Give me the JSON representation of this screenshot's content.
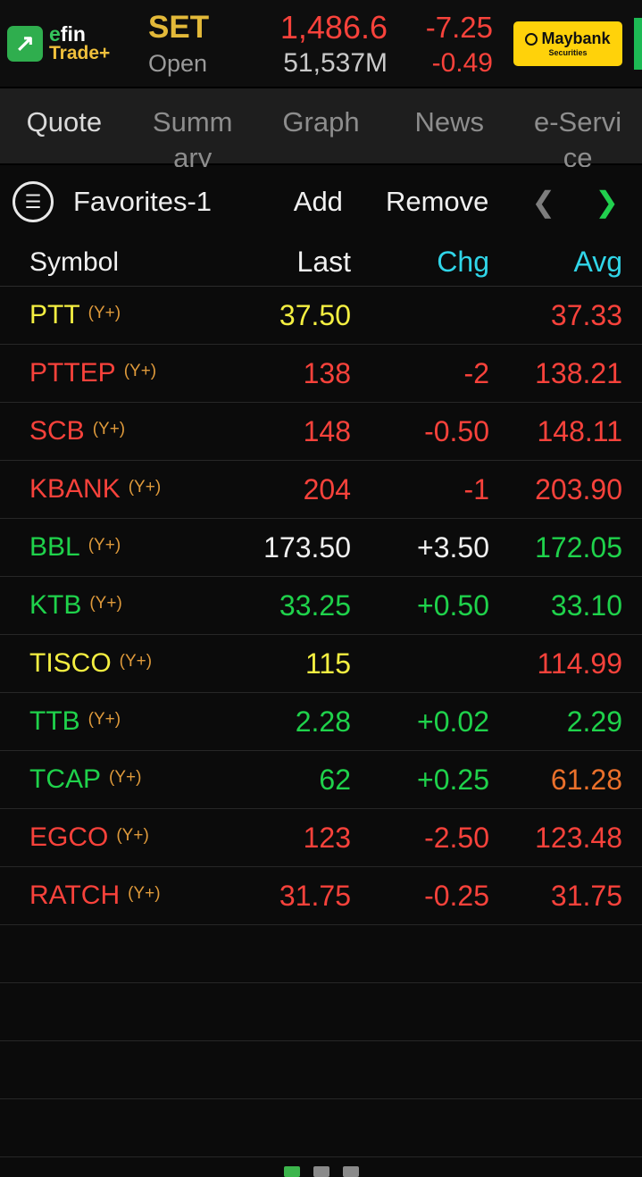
{
  "colors": {
    "up": "#1fd24b",
    "down": "#f8423b",
    "unchanged": "#f4ef41",
    "neutral": "#f0f0f0",
    "orange": "#ea702b",
    "cyan": "#30d5e8"
  },
  "header": {
    "logo_efin": "efin",
    "logo_trade": "Trade+",
    "logo_arrow": "↗",
    "index_name": "SET",
    "index_value": "1,486.6",
    "index_change": "-7.25",
    "market_status": "Open",
    "market_value": "51,537M",
    "index_change_pct": "-0.49",
    "broker_name": "Maybank",
    "broker_sub": "Securities"
  },
  "tabs": [
    {
      "label": "Quote",
      "active": true
    },
    {
      "label": "Summary",
      "active": false
    },
    {
      "label": "Graph",
      "active": false
    },
    {
      "label": "News",
      "active": false
    },
    {
      "label": "e-Service",
      "active": false
    }
  ],
  "favorites_bar": {
    "menu_icon": "☰",
    "title": "Favorites-1",
    "add_label": "Add",
    "remove_label": "Remove",
    "prev_icon": "❮",
    "next_icon": "❯"
  },
  "table": {
    "headers": [
      {
        "label": "Symbol",
        "color": "neutral"
      },
      {
        "label": "Last",
        "color": "neutral"
      },
      {
        "label": "Chg",
        "color": "cyan"
      },
      {
        "label": "Avg",
        "color": "cyan"
      }
    ],
    "rows": [
      {
        "symbol": "PTT",
        "tag": "(Y+)",
        "symbol_color": "unchanged",
        "last": "37.50",
        "last_color": "unchanged",
        "chg": "",
        "chg_color": "neutral",
        "avg": "37.33",
        "avg_color": "down"
      },
      {
        "symbol": "PTTEP",
        "tag": "(Y+)",
        "symbol_color": "down",
        "last": "138",
        "last_color": "down",
        "chg": "-2",
        "chg_color": "down",
        "avg": "138.21",
        "avg_color": "down"
      },
      {
        "symbol": "SCB",
        "tag": "(Y+)",
        "symbol_color": "down",
        "last": "148",
        "last_color": "down",
        "chg": "-0.50",
        "chg_color": "down",
        "avg": "148.11",
        "avg_color": "down"
      },
      {
        "symbol": "KBANK",
        "tag": "(Y+)",
        "symbol_color": "down",
        "last": "204",
        "last_color": "down",
        "chg": "-1",
        "chg_color": "down",
        "avg": "203.90",
        "avg_color": "down"
      },
      {
        "symbol": "BBL",
        "tag": "(Y+)",
        "symbol_color": "up",
        "last": "173.50",
        "last_color": "neutral",
        "chg": "+3.50",
        "chg_color": "neutral",
        "avg": "172.05",
        "avg_color": "up"
      },
      {
        "symbol": "KTB",
        "tag": "(Y+)",
        "symbol_color": "up",
        "last": "33.25",
        "last_color": "up",
        "chg": "+0.50",
        "chg_color": "up",
        "avg": "33.10",
        "avg_color": "up"
      },
      {
        "symbol": "TISCO",
        "tag": "(Y+)",
        "symbol_color": "unchanged",
        "last": "115",
        "last_color": "unchanged",
        "chg": "",
        "chg_color": "neutral",
        "avg": "114.99",
        "avg_color": "down"
      },
      {
        "symbol": "TTB",
        "tag": "(Y+)",
        "symbol_color": "up",
        "last": "2.28",
        "last_color": "up",
        "chg": "+0.02",
        "chg_color": "up",
        "avg": "2.29",
        "avg_color": "up"
      },
      {
        "symbol": "TCAP",
        "tag": "(Y+)",
        "symbol_color": "up",
        "last": "62",
        "last_color": "up",
        "chg": "+0.25",
        "chg_color": "up",
        "avg": "61.28",
        "avg_color": "orange"
      },
      {
        "symbol": "EGCO",
        "tag": "(Y+)",
        "symbol_color": "down",
        "last": "123",
        "last_color": "down",
        "chg": "-2.50",
        "chg_color": "down",
        "avg": "123.48",
        "avg_color": "down"
      },
      {
        "symbol": "RATCH",
        "tag": "(Y+)",
        "symbol_color": "down",
        "last": "31.75",
        "last_color": "down",
        "chg": "-0.25",
        "chg_color": "down",
        "avg": "31.75",
        "avg_color": "down"
      }
    ],
    "empty_rows": 4
  },
  "page_dots": {
    "count": 3,
    "active_index": 0
  }
}
